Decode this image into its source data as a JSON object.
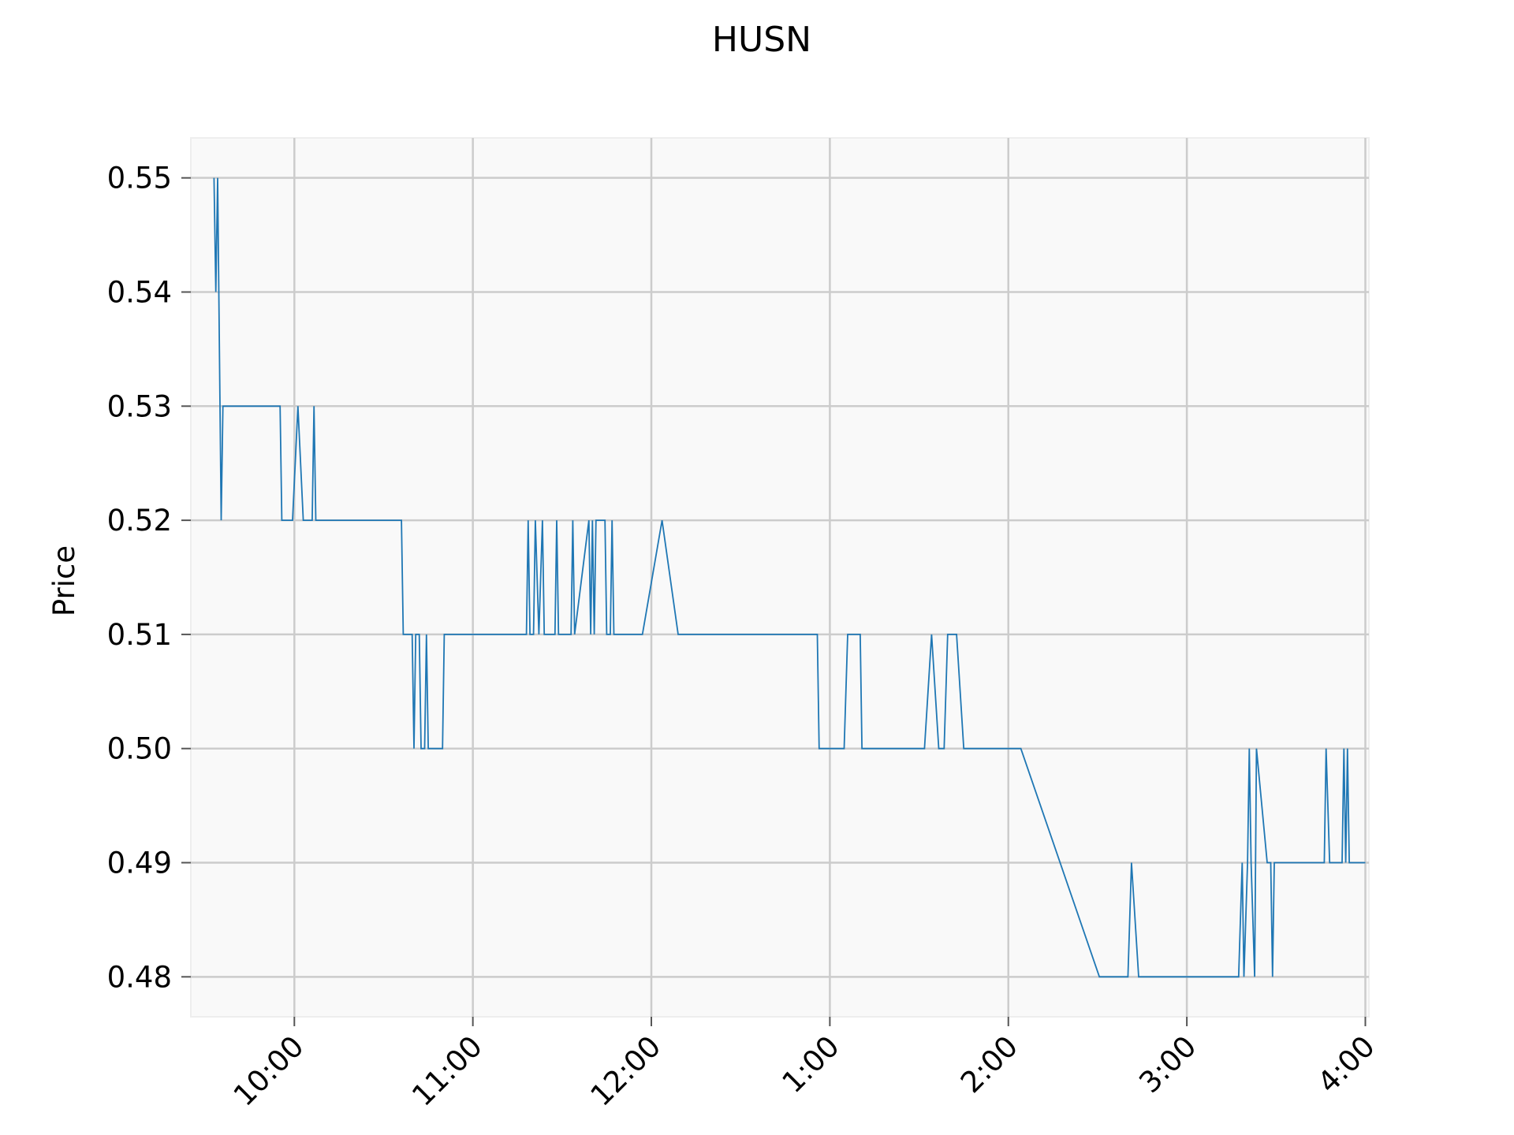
{
  "chart_data": {
    "type": "line",
    "title": "HUSN",
    "xlabel": "",
    "ylabel": "Price",
    "x_unit": "time of day (24h hours)",
    "xlim": [
      9.42,
      16.02
    ],
    "ylim": [
      0.4765,
      0.5535
    ],
    "yticks": [
      0.48,
      0.49,
      0.5,
      0.51,
      0.52,
      0.53,
      0.54,
      0.55
    ],
    "ytick_labels": [
      "0.48",
      "0.49",
      "0.50",
      "0.51",
      "0.52",
      "0.53",
      "0.54",
      "0.55"
    ],
    "xticks": [
      10,
      11,
      12,
      13,
      14,
      15,
      16
    ],
    "xtick_labels": [
      "10:00",
      "11:00",
      "12:00",
      "1:00",
      "2:00",
      "3:00",
      "4:00"
    ],
    "grid": true,
    "colors": {
      "line": "#1f77b4",
      "plot_bg": "#f9f9f9",
      "grid": "#cccccc"
    },
    "series": [
      {
        "points": [
          [
            9.55,
            0.55
          ],
          [
            9.56,
            0.54
          ],
          [
            9.57,
            0.55
          ],
          [
            9.59,
            0.52
          ],
          [
            9.6,
            0.53
          ],
          [
            9.92,
            0.53
          ],
          [
            9.93,
            0.52
          ],
          [
            9.99,
            0.52
          ],
          [
            10.02,
            0.53
          ],
          [
            10.05,
            0.52
          ],
          [
            10.1,
            0.52
          ],
          [
            10.11,
            0.53
          ],
          [
            10.12,
            0.52
          ],
          [
            10.6,
            0.52
          ],
          [
            10.61,
            0.51
          ],
          [
            10.66,
            0.51
          ],
          [
            10.67,
            0.5
          ],
          [
            10.68,
            0.51
          ],
          [
            10.7,
            0.51
          ],
          [
            10.71,
            0.5
          ],
          [
            10.73,
            0.5
          ],
          [
            10.74,
            0.51
          ],
          [
            10.75,
            0.5
          ],
          [
            10.83,
            0.5
          ],
          [
            10.84,
            0.51
          ],
          [
            11.3,
            0.51
          ],
          [
            11.31,
            0.52
          ],
          [
            11.32,
            0.51
          ],
          [
            11.34,
            0.51
          ],
          [
            11.35,
            0.52
          ],
          [
            11.37,
            0.51
          ],
          [
            11.39,
            0.52
          ],
          [
            11.4,
            0.51
          ],
          [
            11.46,
            0.51
          ],
          [
            11.47,
            0.52
          ],
          [
            11.48,
            0.51
          ],
          [
            11.55,
            0.51
          ],
          [
            11.56,
            0.52
          ],
          [
            11.57,
            0.51
          ],
          [
            11.65,
            0.52
          ],
          [
            11.66,
            0.51
          ],
          [
            11.67,
            0.52
          ],
          [
            11.68,
            0.51
          ],
          [
            11.69,
            0.52
          ],
          [
            11.74,
            0.52
          ],
          [
            11.75,
            0.51
          ],
          [
            11.77,
            0.51
          ],
          [
            11.78,
            0.52
          ],
          [
            11.79,
            0.51
          ],
          [
            11.95,
            0.51
          ],
          [
            12.06,
            0.52
          ],
          [
            12.15,
            0.51
          ],
          [
            12.93,
            0.51
          ],
          [
            12.94,
            0.5
          ],
          [
            13.08,
            0.5
          ],
          [
            13.1,
            0.51
          ],
          [
            13.17,
            0.51
          ],
          [
            13.18,
            0.5
          ],
          [
            13.53,
            0.5
          ],
          [
            13.57,
            0.51
          ],
          [
            13.61,
            0.5
          ],
          [
            13.64,
            0.5
          ],
          [
            13.66,
            0.51
          ],
          [
            13.71,
            0.51
          ],
          [
            13.75,
            0.5
          ],
          [
            14.07,
            0.5
          ],
          [
            14.51,
            0.48
          ],
          [
            14.67,
            0.48
          ],
          [
            14.69,
            0.49
          ],
          [
            14.73,
            0.48
          ],
          [
            15.29,
            0.48
          ],
          [
            15.31,
            0.49
          ],
          [
            15.32,
            0.48
          ],
          [
            15.34,
            0.49
          ],
          [
            15.35,
            0.5
          ],
          [
            15.36,
            0.49
          ],
          [
            15.38,
            0.48
          ],
          [
            15.39,
            0.5
          ],
          [
            15.45,
            0.49
          ],
          [
            15.47,
            0.49
          ],
          [
            15.48,
            0.48
          ],
          [
            15.49,
            0.49
          ],
          [
            15.77,
            0.49
          ],
          [
            15.78,
            0.5
          ],
          [
            15.8,
            0.49
          ],
          [
            15.87,
            0.49
          ],
          [
            15.88,
            0.5
          ],
          [
            15.89,
            0.49
          ],
          [
            15.9,
            0.5
          ],
          [
            15.91,
            0.49
          ],
          [
            16.0,
            0.49
          ]
        ]
      }
    ]
  }
}
